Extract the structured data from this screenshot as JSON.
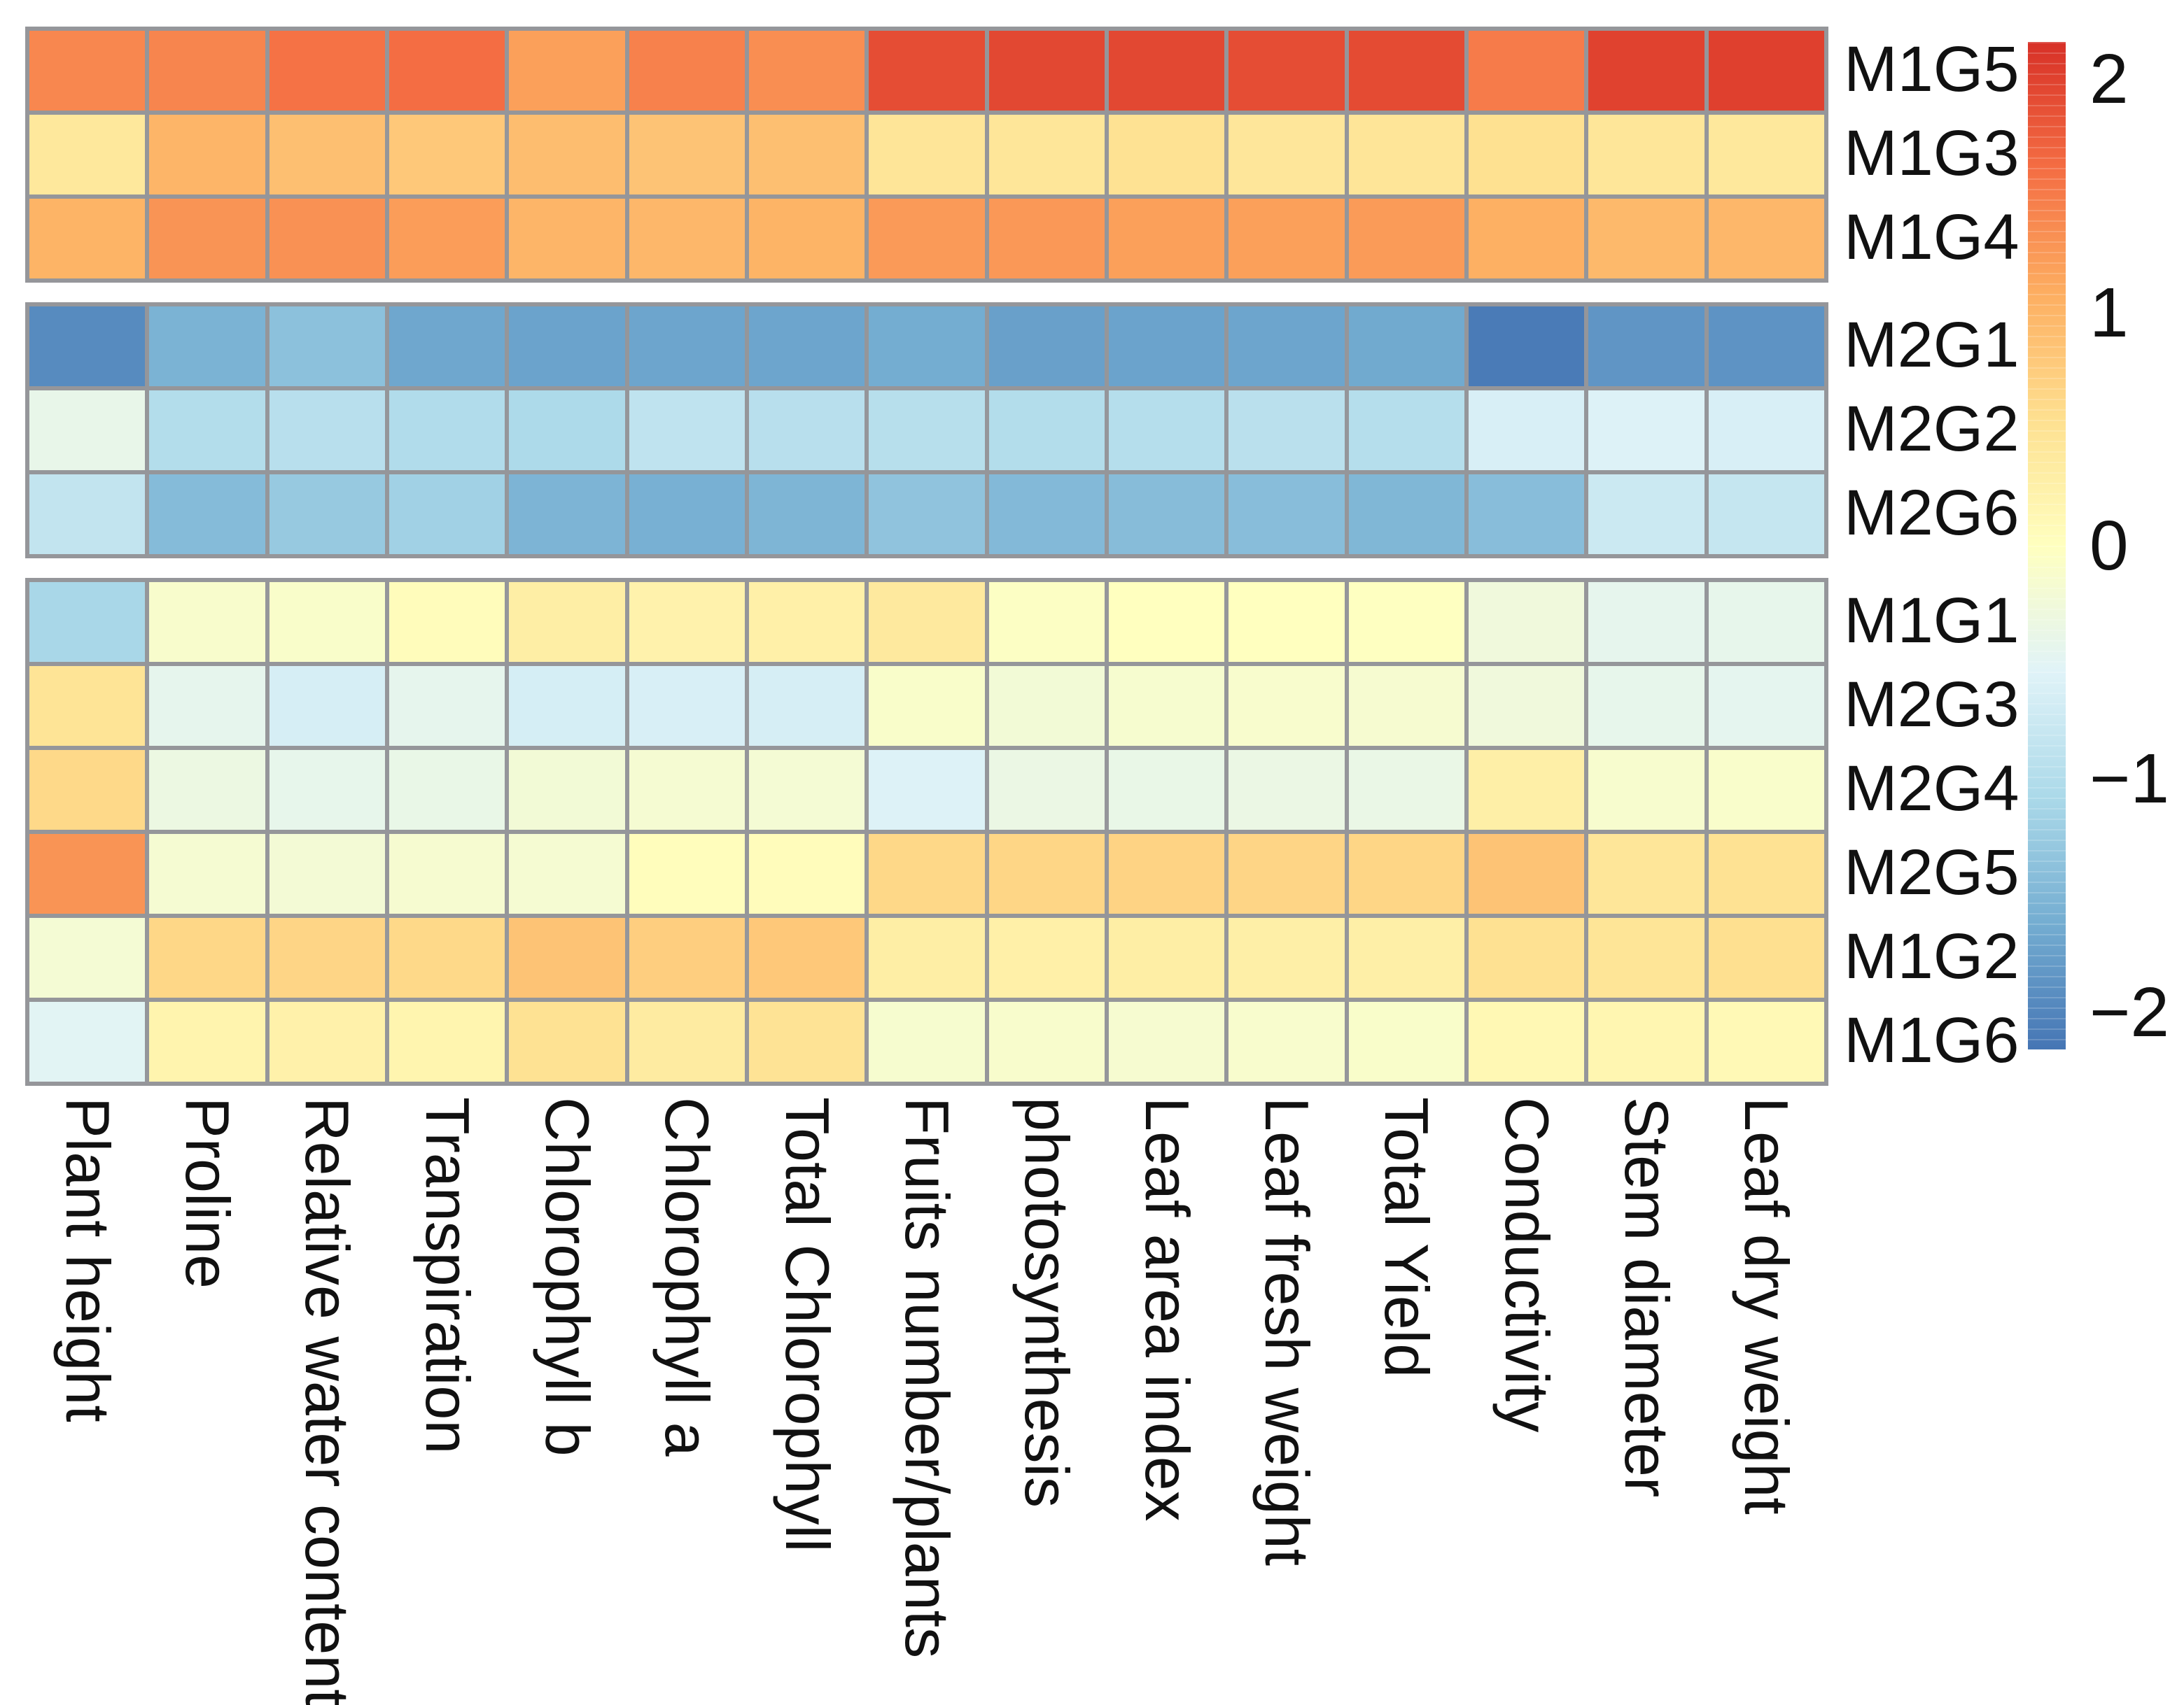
{
  "figure": {
    "background": "#ffffff",
    "text_color": "#111111",
    "gridline_color": "#95969a"
  },
  "chart_data": {
    "type": "heatmap",
    "title": "",
    "xlabel": "",
    "ylabel": "",
    "legend_position": "right-colorbar",
    "grid": "on",
    "columns": [
      "Plant height",
      "Proline",
      "Relative water content",
      "Transpiration",
      "Chlorophyll b",
      "Chlorophyll a",
      "Total Chlorophyll",
      "Fruits number/plants",
      "photosynthesis",
      "Leaf area index",
      "Leaf fresh weight",
      "Total Yield",
      "Conductivity",
      "Stem diameter",
      "Leaf dry weight"
    ],
    "row_groups": [
      {
        "rows": [
          {
            "label": "M1G5",
            "values": [
              1.4,
              1.42,
              1.58,
              1.62,
              1.2,
              1.45,
              1.35,
              1.9,
              1.95,
              1.95,
              1.9,
              1.92,
              1.5,
              2.0,
              2.02
            ]
          },
          {
            "label": "M1G3",
            "values": [
              0.4,
              1.0,
              0.9,
              0.8,
              0.92,
              0.85,
              0.9,
              0.45,
              0.44,
              0.5,
              0.43,
              0.45,
              0.53,
              0.44,
              0.4
            ]
          },
          {
            "label": "M1G4",
            "values": [
              1.02,
              1.3,
              1.32,
              1.22,
              1.0,
              0.98,
              1.02,
              1.25,
              1.26,
              1.2,
              1.2,
              1.24,
              1.06,
              0.96,
              0.98
            ]
          }
        ]
      },
      {
        "rows": [
          {
            "label": "M2G1",
            "values": [
              -1.95,
              -1.55,
              -1.38,
              -1.68,
              -1.72,
              -1.7,
              -1.7,
              -1.62,
              -1.75,
              -1.72,
              -1.7,
              -1.65,
              -2.1,
              -1.85,
              -1.87
            ]
          },
          {
            "label": "M2G2",
            "values": [
              -0.4,
              -1.0,
              -0.95,
              -1.02,
              -1.06,
              -0.88,
              -0.95,
              -0.96,
              -1.0,
              -0.98,
              -0.93,
              -0.98,
              -0.62,
              -0.57,
              -0.62
            ]
          },
          {
            "label": "M2G6",
            "values": [
              -0.85,
              -1.45,
              -1.28,
              -1.18,
              -1.53,
              -1.58,
              -1.52,
              -1.35,
              -1.47,
              -1.43,
              -1.42,
              -1.5,
              -1.42,
              -0.75,
              -0.82
            ]
          }
        ]
      },
      {
        "rows": [
          {
            "label": "M1G1",
            "values": [
              -1.1,
              -0.12,
              -0.1,
              0.05,
              0.3,
              0.22,
              0.27,
              0.38,
              -0.05,
              0.0,
              0.0,
              -0.02,
              -0.27,
              -0.44,
              -0.42
            ]
          },
          {
            "label": "M2G3",
            "values": [
              0.47,
              -0.44,
              -0.64,
              -0.44,
              -0.65,
              -0.62,
              -0.64,
              -0.1,
              -0.22,
              -0.15,
              -0.13,
              -0.16,
              -0.27,
              -0.42,
              -0.45
            ]
          },
          {
            "label": "M2G4",
            "values": [
              0.62,
              -0.33,
              -0.42,
              -0.38,
              -0.22,
              -0.18,
              -0.2,
              -0.57,
              -0.35,
              -0.38,
              -0.35,
              -0.37,
              0.28,
              -0.14,
              -0.11
            ]
          },
          {
            "label": "M2G5",
            "values": [
              1.3,
              -0.18,
              -0.21,
              -0.16,
              -0.18,
              0.03,
              0.05,
              0.63,
              0.65,
              0.68,
              0.66,
              0.65,
              0.85,
              0.44,
              0.5
            ]
          },
          {
            "label": "M1G2",
            "values": [
              -0.2,
              0.64,
              0.66,
              0.62,
              0.85,
              0.73,
              0.8,
              0.3,
              0.26,
              0.3,
              0.28,
              0.28,
              0.52,
              0.46,
              0.54
            ]
          },
          {
            "label": "M1G6",
            "values": [
              -0.5,
              0.2,
              0.24,
              0.18,
              0.5,
              0.35,
              0.48,
              -0.15,
              -0.12,
              -0.16,
              -0.13,
              -0.1,
              0.13,
              0.16,
              0.1
            ]
          }
        ]
      }
    ],
    "colorbar": {
      "vmin": -2.16,
      "vmax": 2.16,
      "ticks": [
        {
          "value": 2,
          "label": "2"
        },
        {
          "value": 1,
          "label": "1"
        },
        {
          "value": 0,
          "label": "0"
        },
        {
          "value": -1,
          "label": "−1"
        },
        {
          "value": -2,
          "label": "−2"
        }
      ],
      "colormap": [
        {
          "v": -2.16,
          "color": "#4575b4"
        },
        {
          "v": -1.62,
          "color": "#74add1"
        },
        {
          "v": -1.08,
          "color": "#abd9e9"
        },
        {
          "v": -0.54,
          "color": "#e0f3f8"
        },
        {
          "v": 0.0,
          "color": "#ffffbf"
        },
        {
          "v": 0.54,
          "color": "#fee090"
        },
        {
          "v": 1.08,
          "color": "#fdae61"
        },
        {
          "v": 1.62,
          "color": "#f46d43"
        },
        {
          "v": 2.16,
          "color": "#d73027"
        }
      ]
    }
  }
}
